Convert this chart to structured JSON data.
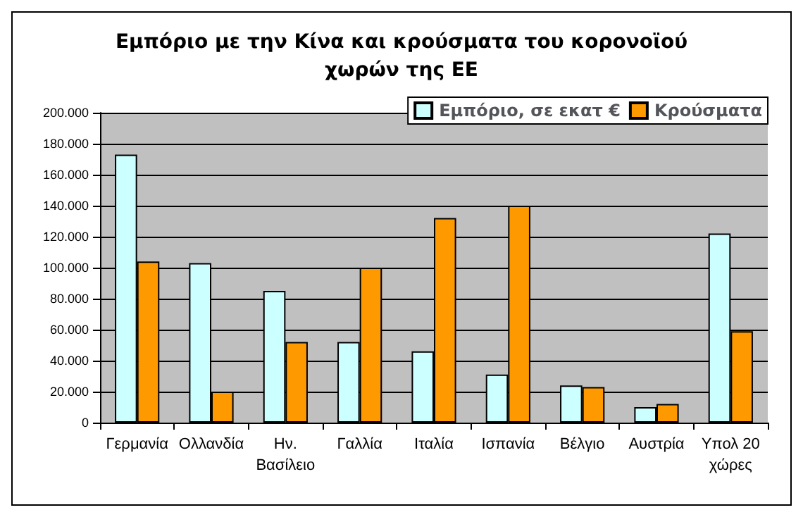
{
  "chart_data": {
    "type": "bar",
    "title": "Εμπόριο με την Κίνα και κρούσματα του κορονοϊού\nχωρών της ΕΕ",
    "categories": [
      "Γερμανία",
      "Ολλανδία",
      "Ην. Βασίλειο",
      "Γαλλία",
      "Ιταλία",
      "Ισπανία",
      "Βέλγιο",
      "Αυστρία",
      "Υπολ 20 χώρες"
    ],
    "series": [
      {
        "name": "Εμπόριο, σε εκατ €",
        "color": "#ccffff",
        "values": [
          173000,
          103000,
          85000,
          52000,
          46000,
          31000,
          24000,
          10000,
          122000
        ]
      },
      {
        "name": "Κρούσματα",
        "color": "#ff9900",
        "values": [
          104000,
          20000,
          52000,
          100000,
          132000,
          140000,
          23000,
          12000,
          59000
        ]
      }
    ],
    "ylim": [
      0,
      200000
    ],
    "yticks": [
      0,
      {
        "value": 20000,
        "label": "20.000"
      },
      {
        "value": 40000,
        "label": "40.000"
      },
      {
        "value": 60000,
        "label": "60.000"
      },
      {
        "value": 80000,
        "label": "80.000"
      },
      {
        "value": 100000,
        "label": "100.000"
      },
      {
        "value": 120000,
        "label": "120.000"
      },
      {
        "value": 140000,
        "label": "140.000"
      },
      {
        "value": 160000,
        "label": "160.000"
      },
      {
        "value": 180000,
        "label": "180.000"
      },
      {
        "value": 200000,
        "label": "200.000"
      }
    ],
    "grid": "y",
    "legend": "top right"
  }
}
